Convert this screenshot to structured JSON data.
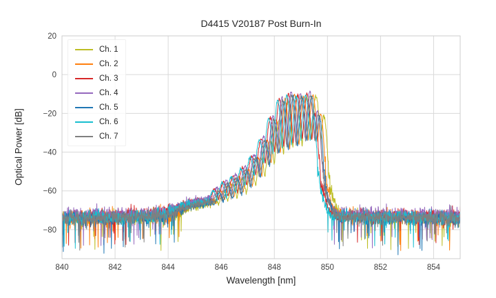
{
  "chart_data": {
    "type": "line",
    "title": "D4415 V20187 Post Burn-In",
    "xlabel": "Wavelength [nm]",
    "ylabel": "Optical Power [dB]",
    "xlim": [
      840,
      855
    ],
    "ylim": [
      -95,
      20
    ],
    "xticks": [
      840,
      842,
      844,
      846,
      848,
      850,
      852,
      854
    ],
    "yticks": [
      20,
      0,
      -20,
      -40,
      -60,
      -80
    ],
    "ytick_labels": [
      "20",
      "0",
      "−20",
      "−40",
      "−60",
      "−80"
    ],
    "grid": true,
    "grid_color": "#d9d9d9",
    "frame_color": "#cccccc",
    "legend_position": "upper-left",
    "series": [
      {
        "name": "Ch. 1",
        "color": "#bcbd22",
        "offset_nm": 0.22,
        "db_offset": -0.5,
        "seed": 101
      },
      {
        "name": "Ch. 2",
        "color": "#ff7f0e",
        "offset_nm": 0.1,
        "db_offset": 0.0,
        "seed": 202
      },
      {
        "name": "Ch. 3",
        "color": "#d62728",
        "offset_nm": -0.12,
        "db_offset": 0.5,
        "seed": 303
      },
      {
        "name": "Ch. 4",
        "color": "#9467bd",
        "offset_nm": -0.02,
        "db_offset": 1.5,
        "seed": 404
      },
      {
        "name": "Ch. 5",
        "color": "#1f77b4",
        "offset_nm": 0.05,
        "db_offset": -0.8,
        "seed": 505
      },
      {
        "name": "Ch. 6",
        "color": "#17becf",
        "offset_nm": -0.18,
        "db_offset": 0.0,
        "seed": 606
      },
      {
        "name": "Ch. 7",
        "color": "#7f7f7f",
        "offset_nm": 0.0,
        "db_offset": -0.3,
        "seed": 707
      }
    ],
    "spectrum_model": {
      "x_step": 0.01,
      "fringe_region": [
        845.65,
        849.8
      ],
      "fringe_period_nm": 0.35,
      "fringe_peak_nm": 848.65,
      "fringe_sharpness": 0.55,
      "fringe_noise_db": 0.45,
      "noise_spike_probability": 0.04,
      "noise_spike_max_db": 16,
      "noise_spike_floor_db": -70,
      "peak_envelope_db": [
        [
          840,
          -70.5
        ],
        [
          843.5,
          -70
        ],
        [
          844.3,
          -67.5
        ],
        [
          844.8,
          -65
        ],
        [
          845.3,
          -64.5
        ],
        [
          845.65,
          -63
        ],
        [
          845.85,
          -60
        ],
        [
          846.2,
          -56
        ],
        [
          846.55,
          -53
        ],
        [
          846.9,
          -49
        ],
        [
          847.25,
          -43
        ],
        [
          847.6,
          -34
        ],
        [
          847.95,
          -23
        ],
        [
          848.3,
          -13
        ],
        [
          848.65,
          -10.5
        ],
        [
          849.0,
          -11.5
        ],
        [
          849.35,
          -10.5
        ],
        [
          849.6,
          -12
        ],
        [
          849.75,
          -30
        ],
        [
          849.9,
          -55
        ],
        [
          850.15,
          -68
        ],
        [
          850.5,
          -70.5
        ],
        [
          855,
          -70.5
        ]
      ],
      "trough_envelope_db": [
        [
          840,
          -77
        ],
        [
          844,
          -76
        ],
        [
          844.5,
          -71
        ],
        [
          845.0,
          -68.5
        ],
        [
          845.5,
          -67.5
        ],
        [
          846.0,
          -65
        ],
        [
          846.4,
          -63.5
        ],
        [
          846.75,
          -61
        ],
        [
          847.1,
          -57
        ],
        [
          847.45,
          -52
        ],
        [
          847.8,
          -46
        ],
        [
          848.1,
          -41
        ],
        [
          848.5,
          -38
        ],
        [
          848.8,
          -37
        ],
        [
          849.15,
          -34
        ],
        [
          849.5,
          -33
        ],
        [
          849.7,
          -45
        ],
        [
          849.95,
          -65
        ],
        [
          850.3,
          -76
        ],
        [
          855,
          -77
        ]
      ]
    }
  }
}
